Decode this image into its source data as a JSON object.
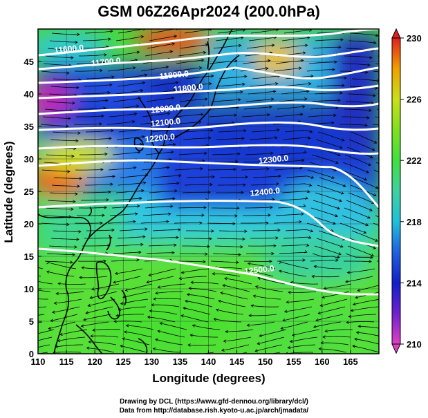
{
  "title": "GSM 06Z26Apr2024 (200.0hPa)",
  "x_axis": {
    "label": "Longitude (degrees)",
    "ticks": [
      "110",
      "115",
      "120",
      "125",
      "130",
      "135",
      "140",
      "145",
      "150",
      "155",
      "160",
      "165"
    ],
    "range": [
      110,
      170
    ]
  },
  "y_axis": {
    "label": "Latitude  (degrees)",
    "ticks": [
      "0",
      "5",
      "10",
      "15",
      "20",
      "25",
      "30",
      "35",
      "40",
      "45"
    ],
    "range": [
      0,
      50
    ]
  },
  "colorbar": {
    "ticks": [
      "210",
      "214",
      "218",
      "222",
      "226",
      "230"
    ],
    "range": [
      210,
      230
    ],
    "colors": [
      "#e040c0",
      "#7020d0",
      "#1020c8",
      "#2060e0",
      "#20c0d8",
      "#40d0a0",
      "#40e040",
      "#a0e020",
      "#f0e010",
      "#f0a000",
      "#f05020",
      "#e02020"
    ]
  },
  "contours": [
    {
      "label": "11600.0",
      "lon": 115.5,
      "lat": 46.5
    },
    {
      "label": "11700.0",
      "lon": 122,
      "lat": 44.5
    },
    {
      "label": "11800.0",
      "lon": 134,
      "lat": 42.5
    },
    {
      "label": "11800.0",
      "lon": 136.5,
      "lat": 40.5
    },
    {
      "label": "12000.0",
      "lon": 132.5,
      "lat": 37.3
    },
    {
      "label": "12100.0",
      "lon": 132.5,
      "lat": 35.2
    },
    {
      "label": "12200.0",
      "lon": 131.5,
      "lat": 32.8
    },
    {
      "label": "12300.0",
      "lon": 151.5,
      "lat": 29.5
    },
    {
      "label": "12400.0",
      "lon": 150,
      "lat": 24.5
    },
    {
      "label": "12500.0",
      "lon": 149,
      "lat": 12.5
    }
  ],
  "credits": {
    "line1": "Drawing by DCL (https://www.gfd-dennou.org/library/dcl/)",
    "line2": "Data from http://database.rish.kyoto-u.ac.jp/arch/jmadata/"
  }
}
